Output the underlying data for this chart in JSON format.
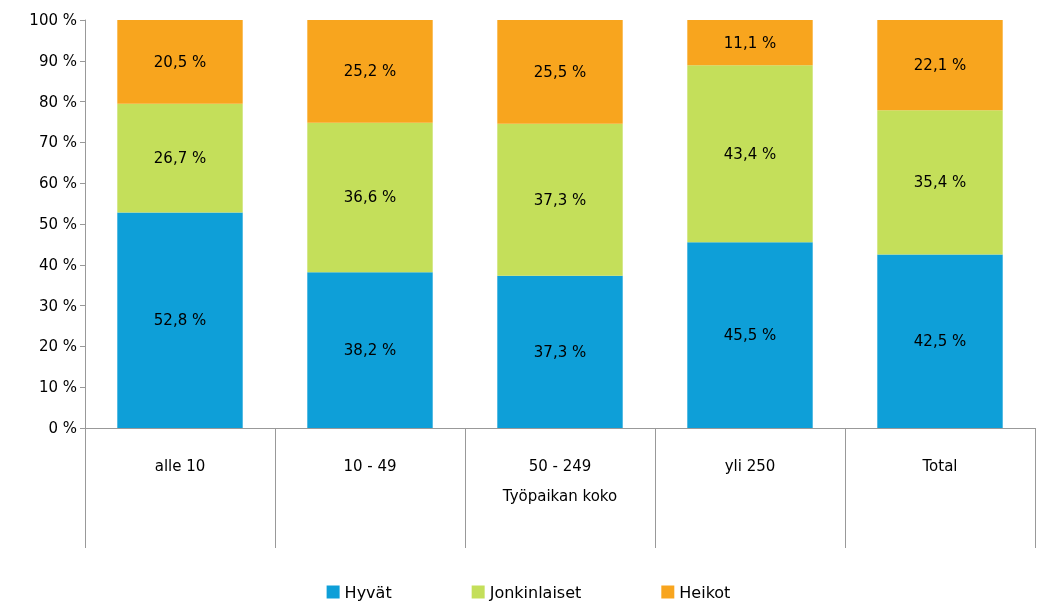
{
  "chart_data": {
    "type": "bar",
    "stacked": true,
    "xlabel": "Työpaikan koko",
    "categories": [
      "alle 10",
      "10 - 49",
      "50 - 249",
      "yli 250",
      "Total"
    ],
    "series": [
      {
        "name": "Hyvät",
        "color": "#0e9fd8",
        "values": [
          52.8,
          38.2,
          37.3,
          45.5,
          42.5
        ],
        "value_labels": [
          "52,8 %",
          "38,2 %",
          "37,3 %",
          "45,5 %",
          "42,5 %"
        ]
      },
      {
        "name": "Jonkinlaiset",
        "color": "#c4df5a",
        "values": [
          26.7,
          36.6,
          37.3,
          43.4,
          35.4
        ],
        "value_labels": [
          "26,7 %",
          "36,6 %",
          "37,3 %",
          "43,4 %",
          "35,4 %"
        ]
      },
      {
        "name": "Heikot",
        "color": "#f8a51e",
        "values": [
          20.5,
          25.2,
          25.5,
          11.1,
          22.1
        ],
        "value_labels": [
          "20,5 %",
          "25,2 %",
          "25,5 %",
          "11,1 %",
          "22,1 %"
        ]
      }
    ],
    "ylim": [
      0,
      100
    ],
    "yticks": [
      {
        "value": 0,
        "label": "0 %"
      },
      {
        "value": 10,
        "label": "10 %"
      },
      {
        "value": 20,
        "label": "20 %"
      },
      {
        "value": 30,
        "label": "30 %"
      },
      {
        "value": 40,
        "label": "40 %"
      },
      {
        "value": 50,
        "label": "50 %"
      },
      {
        "value": 60,
        "label": "60 %"
      },
      {
        "value": 70,
        "label": "70 %"
      },
      {
        "value": 80,
        "label": "80 %"
      },
      {
        "value": 90,
        "label": "90 %"
      },
      {
        "value": 100,
        "label": "100 %"
      }
    ],
    "grid": false,
    "legend": "bottom"
  }
}
